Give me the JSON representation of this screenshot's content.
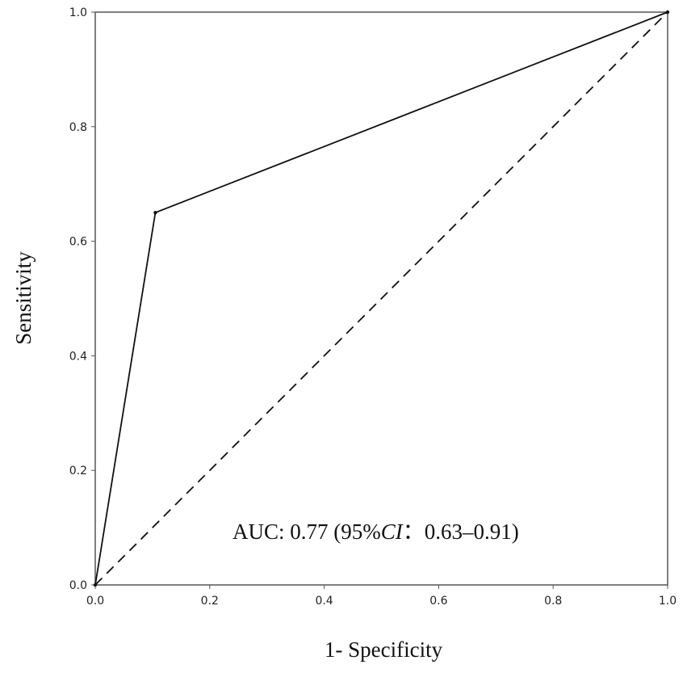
{
  "chart_data": {
    "type": "line",
    "title": "",
    "xlabel": "1- Specificity",
    "ylabel": "Sensitivity",
    "xlim": [
      0.0,
      1.0
    ],
    "ylim": [
      0.0,
      1.0
    ],
    "x_ticks": [
      "0.0",
      "0.2",
      "0.4",
      "0.6",
      "0.8",
      "1.0"
    ],
    "y_ticks": [
      "0.0",
      "0.2",
      "0.4",
      "0.6",
      "0.8",
      "1.0"
    ],
    "grid": false,
    "series": [
      {
        "style": "solid",
        "color": "#111111",
        "x": [
          0.0,
          0.105,
          1.0
        ],
        "y": [
          0.0,
          0.65,
          1.0
        ]
      },
      {
        "style": "dashed",
        "color": "#111111",
        "x": [
          0.0,
          1.0
        ],
        "y": [
          0.0,
          1.0
        ]
      }
    ],
    "annotation": {
      "prefix": "AUC: 0.77 (95%",
      "ci_label": "CI",
      "suffix": "：0.63–0.91)"
    }
  }
}
